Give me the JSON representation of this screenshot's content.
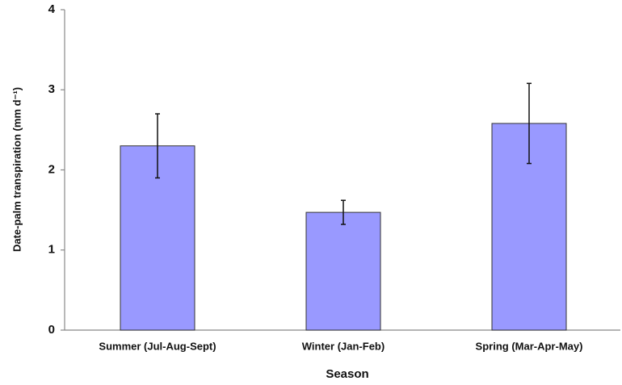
{
  "chart_data": {
    "type": "bar",
    "categories": [
      "Summer (Jul-Aug-Sept)",
      "Winter (Jan-Feb)",
      "Spring (Mar-Apr-May)"
    ],
    "values": [
      2.3,
      1.47,
      2.58
    ],
    "errors": [
      0.4,
      0.15,
      0.5
    ],
    "color": "#9999ff",
    "xlabel": "Season",
    "ylabel": "Date-palm transpiration (mm d⁻¹)",
    "ylim": [
      0,
      4
    ],
    "yticks": [
      0,
      1,
      2,
      3,
      4
    ],
    "grid": false
  }
}
